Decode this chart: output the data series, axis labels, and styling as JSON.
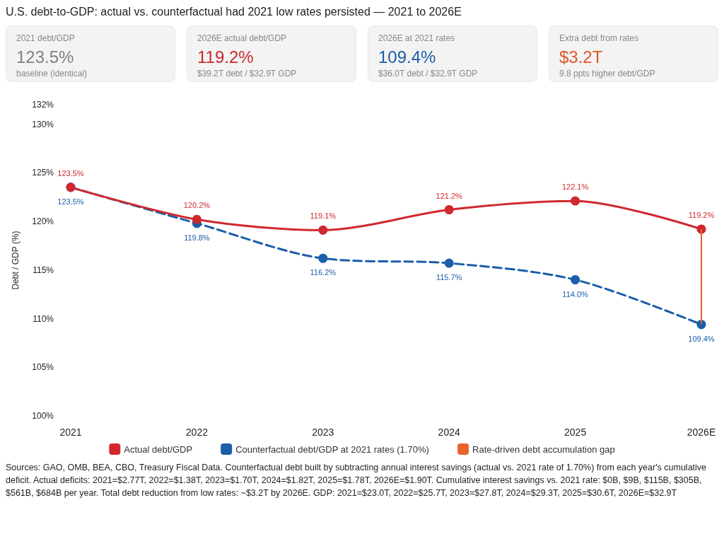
{
  "chart_data": [
    {
      "type": "other",
      "title": "2021 debt/GDP",
      "color": "#7f7f7f",
      "annotations": [
        "123.5%",
        "baseline (identical)"
      ]
    },
    {
      "type": "other",
      "title": "2026E actual debt/GDP",
      "color": "#c9282d",
      "annotations": [
        "119.2%",
        "$39.2T debt / $32.9T GDP"
      ]
    },
    {
      "type": "other",
      "title": "2026E at 2021 rates",
      "color": "#1c5ea8",
      "annotations": [
        "109.4%",
        "$36.0T debt / $32.9T GDP"
      ]
    },
    {
      "type": "other",
      "title": "Extra debt from rates",
      "color": "#e0562a",
      "annotations": [
        "$3.2T",
        "9.8 ppts higher debt/GDP"
      ]
    },
    {
      "type": "line",
      "title": "U.S. debt-to-GDP: actual vs. counterfactual had 2021 low rates persisted — 2021 to 2026E",
      "ylabel": "Debt / GDP (%)",
      "categories": [
        "2021",
        "2022",
        "2023",
        "2024",
        "2025",
        "2026E"
      ],
      "series": [
        {
          "name": "Actual debt/GDP",
          "color": "#d0282e",
          "line_style": "solid",
          "values": [
            123.5,
            120.2,
            119.1,
            121.2,
            122.1,
            119.2
          ],
          "value_labels": [
            "123.5%",
            "120.2%",
            "119.1%",
            "121.2%",
            "122.1%",
            "119.2%"
          ]
        },
        {
          "name": "Counterfactual debt/GDP at 2021 rates (1.70%)",
          "color": "#1b5ea9",
          "line_style": "dashed",
          "values": [
            123.5,
            119.8,
            116.2,
            115.7,
            114.0,
            109.4
          ],
          "value_labels": [
            "123.5%",
            "119.8%",
            "116.2%",
            "115.7%",
            "114.0%",
            "109.4%"
          ]
        },
        {
          "name": "Rate-driven debt accumulation gap",
          "type": "bar",
          "color": "#e8622c",
          "base": [
            null,
            null,
            null,
            null,
            null,
            109.4
          ],
          "values": [
            null,
            null,
            null,
            null,
            null,
            9.8
          ]
        }
      ],
      "ylim": [
        100,
        132
      ],
      "yticks": [
        {
          "value": 100,
          "label": "100%"
        },
        {
          "value": 105,
          "label": "105%"
        },
        {
          "value": 110,
          "label": "110%"
        },
        {
          "value": 115,
          "label": "115%"
        },
        {
          "value": 120,
          "label": "120%"
        },
        {
          "value": 125,
          "label": "125%"
        },
        {
          "value": 130,
          "label": "130%"
        },
        {
          "value": 132,
          "label": "132%"
        }
      ],
      "grid": false,
      "legend": "bottom",
      "marker": "circle",
      "annotations": [
        "Sources: GAO, OMB, BEA, CBO, Treasury Fiscal Data. Counterfactual debt built by subtracting annual interest savings (actual vs. 2021 rate of 1.70%) from each year's cumulative deficit. Actual deficits: 2021=$2.77T, 2022=$1.38T, 2023=$1.70T, 2024=$1.82T, 2025=$1.78T, 2026E=$1.90T. Cumulative interest savings vs. 2021 rate: $0B, $9B, $115B, $305B, $561B, $684B per year. Total debt reduction from low rates: ~$3.2T by 2026E. GDP: 2021=$23.0T, 2022=$25.7T, 2023=$27.8T, 2024=$29.3T, 2025=$30.6T, 2026E=$32.9T"
      ]
    }
  ]
}
